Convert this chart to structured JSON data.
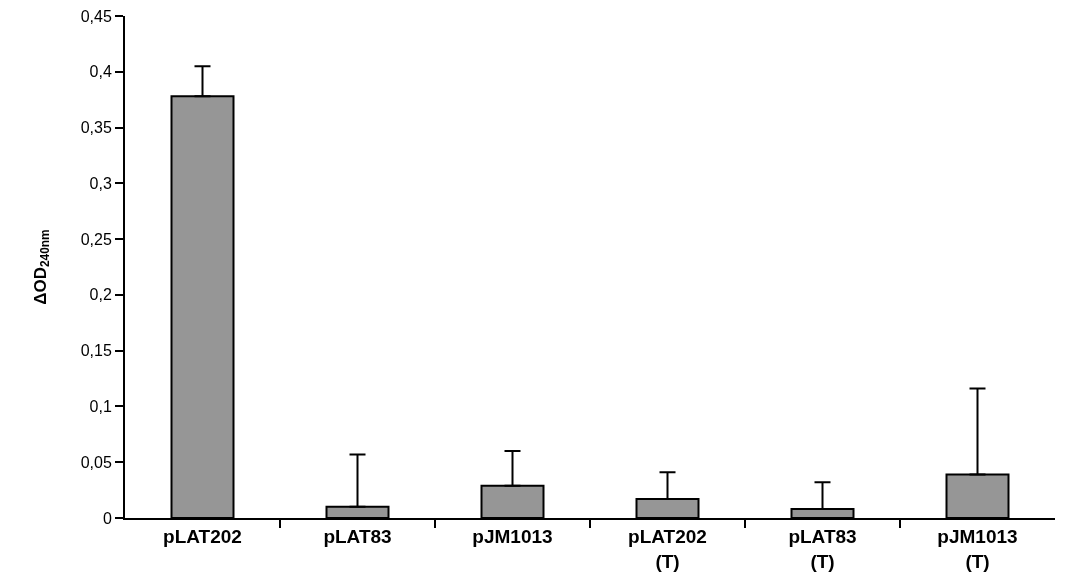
{
  "chart_data": {
    "type": "bar",
    "ylabel": "ΔOD$_{240nm}$",
    "categories": [
      "pLAT202",
      "pLAT83",
      "pJM1013",
      "pLAT202 (T)",
      "pLAT83 (T)",
      "pJM1013 (T)"
    ],
    "values": [
      0.378,
      0.01,
      0.029,
      0.017,
      0.008,
      0.039
    ],
    "errors": [
      [
        0.378,
        0.405
      ],
      [
        0.01,
        0.057
      ],
      [
        0.029,
        0.06
      ],
      [
        0.017,
        0.041
      ],
      [
        0.008,
        0.032
      ],
      [
        0.039,
        0.116
      ]
    ],
    "color": "#969696",
    "ylim": [
      0,
      0.45
    ],
    "yticks": [
      {
        "value": 0,
        "label": "0"
      },
      {
        "value": 0.05,
        "label": "0,05"
      },
      {
        "value": 0.1,
        "label": "0,1"
      },
      {
        "value": 0.15,
        "label": "0,15"
      },
      {
        "value": 0.2,
        "label": "0,2"
      },
      {
        "value": 0.25,
        "label": "0,25"
      },
      {
        "value": 0.3,
        "label": "0,3"
      },
      {
        "value": 0.35,
        "label": "0,35"
      },
      {
        "value": 0.4,
        "label": "0,4"
      },
      {
        "value": 0.45,
        "label": "0,45"
      }
    ],
    "grid": false
  }
}
